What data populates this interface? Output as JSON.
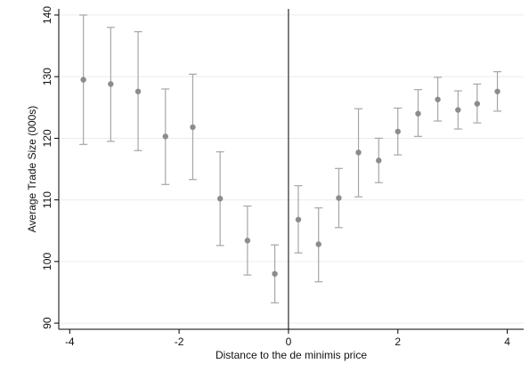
{
  "chart_data": {
    "type": "scatter",
    "xlabel": "Distance to the de minimis price",
    "ylabel": "Average Trade Size (000s)",
    "xlim": [
      -4.2,
      4.3
    ],
    "ylim": [
      89,
      141
    ],
    "xticks": [
      -4,
      -2,
      0,
      2,
      4
    ],
    "xtick_labels": [
      "-4",
      "-2",
      "0",
      "2",
      "4"
    ],
    "yticks": [
      90,
      100,
      110,
      120,
      130,
      140
    ],
    "ytick_labels": [
      "90",
      "100",
      "110",
      "120",
      "130",
      "140"
    ],
    "grid": true,
    "vertical_reference_line_x": 0,
    "colors": {
      "points": "#8c8c8c",
      "error_bars": "#a6a6a6",
      "grid": "#ececec",
      "axes": "#000000",
      "reference_line": "#000000"
    },
    "points": [
      {
        "x": -3.75,
        "y": 129.5,
        "ci_low": 119.0,
        "ci_high": 140.0
      },
      {
        "x": -3.25,
        "y": 128.8,
        "ci_low": 119.5,
        "ci_high": 138.0
      },
      {
        "x": -2.75,
        "y": 127.6,
        "ci_low": 118.0,
        "ci_high": 137.3
      },
      {
        "x": -2.25,
        "y": 120.3,
        "ci_low": 112.5,
        "ci_high": 128.0
      },
      {
        "x": -1.75,
        "y": 121.8,
        "ci_low": 113.3,
        "ci_high": 130.4
      },
      {
        "x": -1.25,
        "y": 110.2,
        "ci_low": 102.6,
        "ci_high": 117.8
      },
      {
        "x": -0.75,
        "y": 103.4,
        "ci_low": 97.8,
        "ci_high": 109.0
      },
      {
        "x": -0.25,
        "y": 98.0,
        "ci_low": 93.3,
        "ci_high": 102.7
      },
      {
        "x": 0.18,
        "y": 106.8,
        "ci_low": 101.4,
        "ci_high": 112.3
      },
      {
        "x": 0.55,
        "y": 102.8,
        "ci_low": 96.7,
        "ci_high": 108.7
      },
      {
        "x": 0.92,
        "y": 110.3,
        "ci_low": 105.5,
        "ci_high": 115.1
      },
      {
        "x": 1.28,
        "y": 117.7,
        "ci_low": 110.5,
        "ci_high": 124.8
      },
      {
        "x": 1.65,
        "y": 116.4,
        "ci_low": 112.8,
        "ci_high": 120.0
      },
      {
        "x": 2.0,
        "y": 121.1,
        "ci_low": 117.3,
        "ci_high": 124.9
      },
      {
        "x": 2.37,
        "y": 124.0,
        "ci_low": 120.3,
        "ci_high": 127.9
      },
      {
        "x": 2.73,
        "y": 126.3,
        "ci_low": 122.8,
        "ci_high": 129.9
      },
      {
        "x": 3.1,
        "y": 124.6,
        "ci_low": 121.5,
        "ci_high": 127.7
      },
      {
        "x": 3.45,
        "y": 125.6,
        "ci_low": 122.5,
        "ci_high": 128.8
      },
      {
        "x": 3.82,
        "y": 127.6,
        "ci_low": 124.4,
        "ci_high": 130.8
      }
    ]
  }
}
